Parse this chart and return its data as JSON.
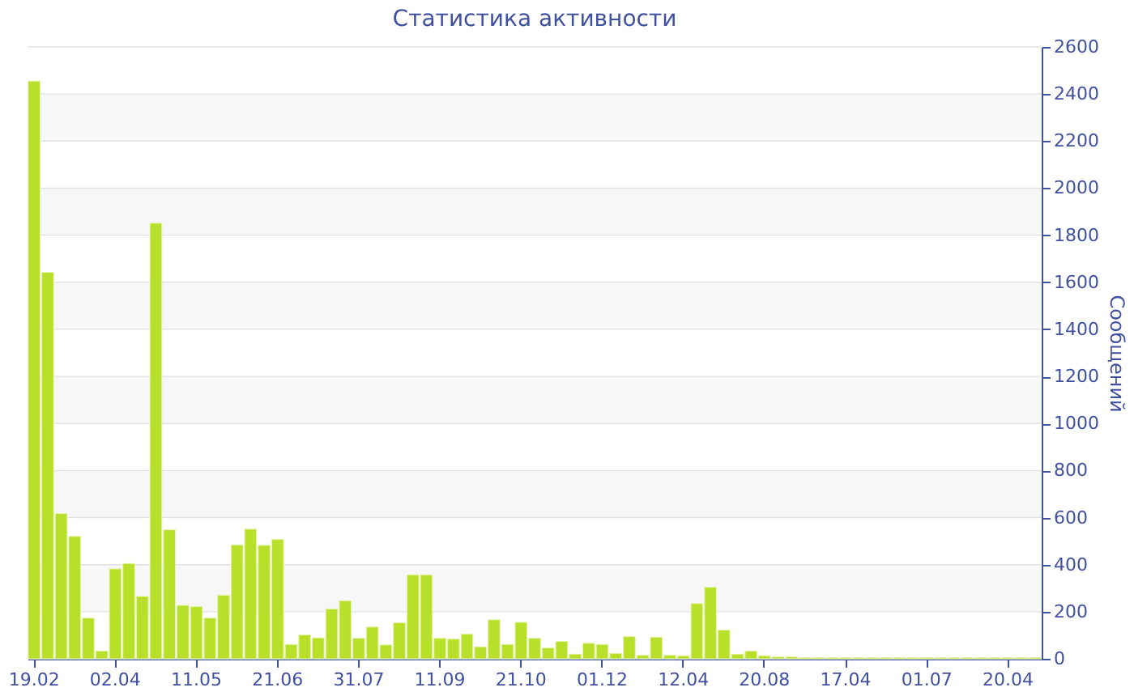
{
  "chart_data": {
    "type": "bar",
    "title": "Статистика активности",
    "ylabel": "Сообщений",
    "categories": [
      "19.02",
      null,
      null,
      null,
      null,
      null,
      "02.04",
      null,
      null,
      null,
      null,
      null,
      "11.05",
      null,
      null,
      null,
      null,
      null,
      "21.06",
      null,
      null,
      null,
      null,
      null,
      "31.07",
      null,
      null,
      null,
      null,
      null,
      "11.09",
      null,
      null,
      null,
      null,
      null,
      "21.10",
      null,
      null,
      null,
      null,
      null,
      "01.12",
      null,
      null,
      null,
      null,
      null,
      "12.04",
      null,
      null,
      null,
      null,
      null,
      "20.08",
      null,
      null,
      null,
      null,
      null,
      "17.04",
      null,
      null,
      null,
      null,
      null,
      "01.07",
      null,
      null,
      null,
      null,
      null,
      "20.04",
      null,
      null
    ],
    "values": [
      2455,
      1642,
      617,
      520,
      173,
      33,
      382,
      405,
      265,
      1851,
      548,
      227,
      222,
      173,
      270,
      484,
      551,
      482,
      507,
      61,
      102,
      89,
      212,
      247,
      87,
      135,
      59,
      153,
      357,
      357,
      87,
      84,
      105,
      51,
      166,
      61,
      155,
      87,
      46,
      74,
      20,
      66,
      61,
      23,
      94,
      15,
      92,
      15,
      13,
      235,
      304,
      122,
      20,
      33,
      13,
      8,
      8,
      5,
      5,
      5,
      5,
      5,
      5,
      5,
      5,
      5,
      5,
      5,
      5,
      5,
      5,
      5,
      5,
      5,
      5
    ],
    "color": "#b8e02a",
    "ylim": [
      0,
      2600
    ],
    "yticks": [
      0,
      200,
      400,
      600,
      800,
      1000,
      1200,
      1400,
      1600,
      1800,
      2000,
      2200,
      2400,
      2600
    ],
    "grid": "y"
  }
}
